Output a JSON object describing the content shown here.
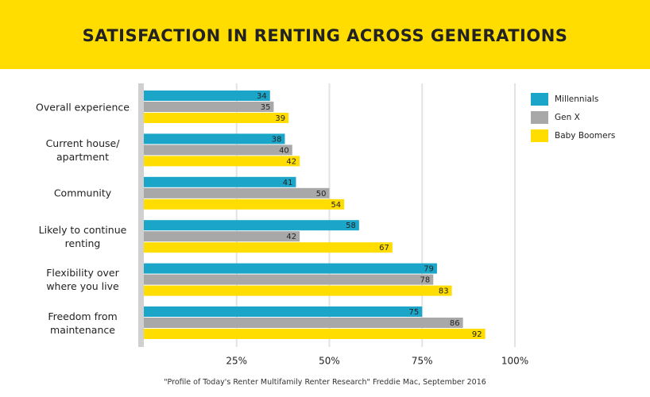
{
  "chart_data": {
    "type": "hbar",
    "title": "SATISFACTION IN RENTING ACROSS GENERATIONS",
    "categories": [
      "Overall experience",
      "Current house/ apartment",
      "Community",
      "Likely to continue renting",
      "Flexibility over where you live",
      "Freedom from maintenance"
    ],
    "series": [
      {
        "name": "Millennials",
        "color": "#1ba6c9",
        "values": [
          34,
          38,
          41,
          58,
          79,
          75
        ]
      },
      {
        "name": "Gen X",
        "color": "#a8a8a8",
        "values": [
          35,
          40,
          50,
          42,
          78,
          86
        ]
      },
      {
        "name": "Baby Boomers",
        "color": "#ffdd00",
        "values": [
          39,
          42,
          54,
          67,
          83,
          92
        ]
      }
    ],
    "xlim": [
      0,
      100
    ],
    "xticks": [
      {
        "value": 25,
        "label": "25%"
      },
      {
        "value": 50,
        "label": "50%"
      },
      {
        "value": 75,
        "label": "75%"
      },
      {
        "value": 100,
        "label": "100%"
      }
    ],
    "grid": true,
    "legend": "top-right",
    "source": "\"Profile of Today's Renter Multifamily Renter Research\" Freddie Mac, September 2016"
  }
}
